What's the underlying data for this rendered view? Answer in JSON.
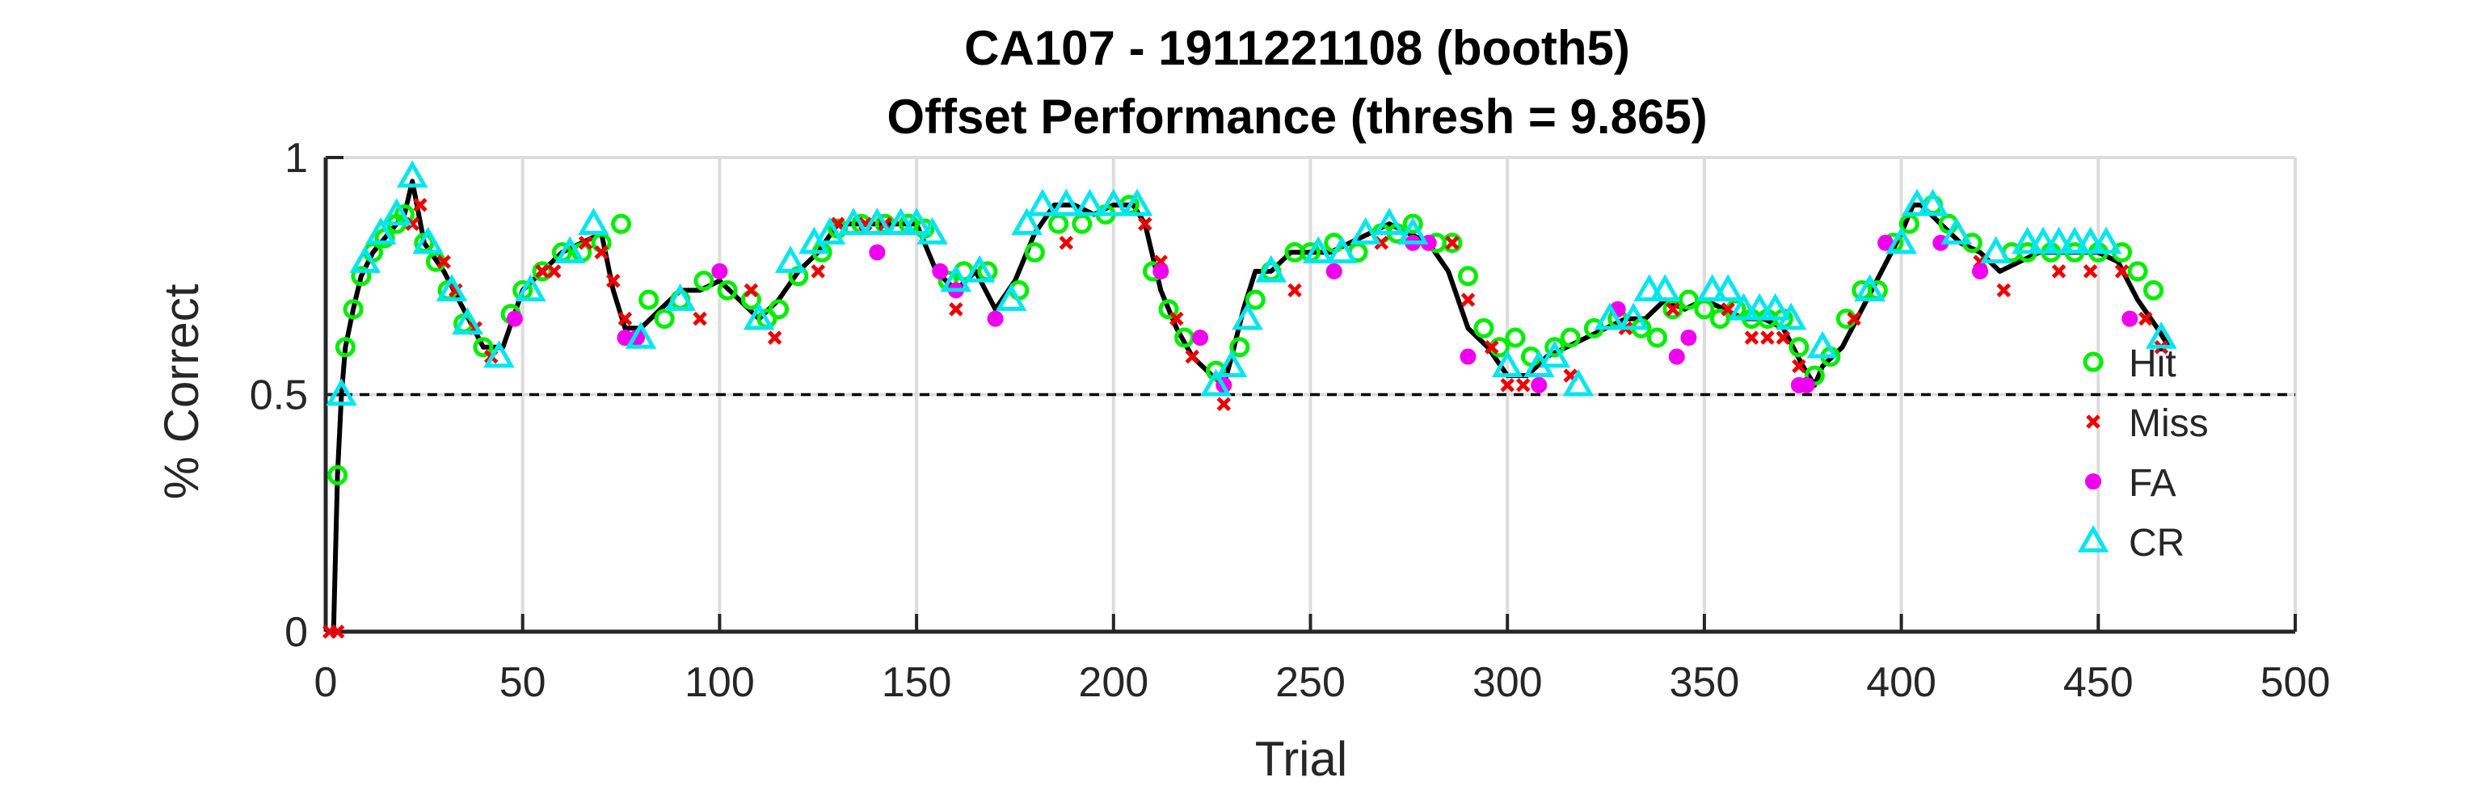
{
  "chart_data": {
    "type": "line",
    "title": "CA107 - 1911221108 (booth5)",
    "subtitle": "Offset Performance (thresh = 9.865)",
    "xlabel": "Trial",
    "ylabel": "% Correct",
    "xlim": [
      0,
      500
    ],
    "ylim": [
      0,
      1
    ],
    "xticks": [
      0,
      50,
      100,
      150,
      200,
      250,
      300,
      350,
      400,
      450,
      500
    ],
    "yticks": [
      0,
      0.5,
      1
    ],
    "ytick_labels": [
      "0",
      "0.5",
      "1"
    ],
    "grid": true,
    "threshold_line": 0.5,
    "legend": {
      "position": "right",
      "entries": [
        "Hit",
        "Miss",
        "FA",
        "CR"
      ]
    },
    "colors": {
      "line": "#000000",
      "hit": "#00ee00",
      "miss": "#ee0000",
      "fa": "#ee00ee",
      "cr": "#00e5ee"
    },
    "series": [
      {
        "name": "Hit",
        "marker": "open-circle",
        "x": [
          3,
          5,
          7,
          9,
          12,
          15,
          18,
          20,
          25,
          28,
          31,
          35,
          40,
          47,
          50,
          55,
          60,
          65,
          70,
          75,
          82,
          86,
          90,
          96,
          102,
          108,
          112,
          115,
          120,
          126,
          130,
          136,
          142,
          148,
          152,
          158,
          162,
          168,
          176,
          180,
          186,
          192,
          198,
          204,
          210,
          214,
          218,
          226,
          232,
          236,
          240,
          246,
          250,
          256,
          262,
          268,
          272,
          276,
          282,
          286,
          290,
          294,
          298,
          302,
          306,
          312,
          316,
          322,
          328,
          334,
          338,
          342,
          346,
          350,
          354,
          358,
          362,
          366,
          370,
          374,
          378,
          382,
          386,
          390,
          394,
          398,
          402,
          408,
          412,
          418,
          428,
          432,
          438,
          444,
          450,
          456,
          460,
          464
        ],
        "y": [
          0.33,
          0.6,
          0.68,
          0.75,
          0.8,
          0.83,
          0.86,
          0.88,
          0.82,
          0.78,
          0.72,
          0.65,
          0.6,
          0.67,
          0.72,
          0.76,
          0.8,
          0.8,
          0.82,
          0.86,
          0.7,
          0.66,
          0.7,
          0.74,
          0.72,
          0.7,
          0.66,
          0.68,
          0.75,
          0.8,
          0.85,
          0.86,
          0.86,
          0.86,
          0.85,
          0.74,
          0.76,
          0.76,
          0.72,
          0.8,
          0.86,
          0.86,
          0.88,
          0.9,
          0.76,
          0.68,
          0.62,
          0.55,
          0.6,
          0.7,
          0.76,
          0.8,
          0.8,
          0.82,
          0.8,
          0.84,
          0.84,
          0.86,
          0.82,
          0.82,
          0.75,
          0.64,
          0.6,
          0.62,
          0.58,
          0.6,
          0.62,
          0.64,
          0.66,
          0.64,
          0.62,
          0.68,
          0.7,
          0.68,
          0.66,
          0.68,
          0.66,
          0.66,
          0.66,
          0.6,
          0.54,
          0.58,
          0.66,
          0.72,
          0.72,
          0.82,
          0.86,
          0.9,
          0.86,
          0.82,
          0.8,
          0.8,
          0.8,
          0.8,
          0.8,
          0.8,
          0.76,
          0.72
        ]
      },
      {
        "name": "Miss",
        "marker": "x",
        "x": [
          1,
          3,
          22,
          24,
          30,
          33,
          38,
          42,
          55,
          58,
          66,
          70,
          73,
          76,
          95,
          108,
          114,
          125,
          130,
          137,
          142,
          160,
          188,
          208,
          212,
          216,
          220,
          228,
          246,
          268,
          286,
          290,
          296,
          300,
          304,
          316,
          330,
          342,
          346,
          356,
          362,
          366,
          370,
          374,
          388,
          420,
          426,
          440,
          448,
          456,
          462,
          466
        ],
        "y": [
          0,
          0,
          0.86,
          0.9,
          0.78,
          0.72,
          0.64,
          0.58,
          0.76,
          0.76,
          0.82,
          0.8,
          0.74,
          0.66,
          0.66,
          0.72,
          0.62,
          0.76,
          0.86,
          0.86,
          0.86,
          0.68,
          0.82,
          0.86,
          0.78,
          0.66,
          0.58,
          0.48,
          0.72,
          0.82,
          0.82,
          0.7,
          0.6,
          0.52,
          0.52,
          0.54,
          0.64,
          0.68,
          0.62,
          0.68,
          0.62,
          0.62,
          0.62,
          0.56,
          0.66,
          0.78,
          0.72,
          0.76,
          0.76,
          0.76,
          0.66,
          0.6
        ]
      },
      {
        "name": "FA",
        "marker": "filled-circle",
        "x": [
          48,
          76,
          79,
          100,
          140,
          156,
          160,
          170,
          212,
          222,
          228,
          256,
          276,
          280,
          290,
          308,
          328,
          343,
          346,
          374,
          376,
          396,
          410,
          420,
          458
        ],
        "y": [
          0.66,
          0.62,
          0.62,
          0.76,
          0.8,
          0.76,
          0.72,
          0.66,
          0.76,
          0.62,
          0.52,
          0.76,
          0.82,
          0.82,
          0.58,
          0.52,
          0.68,
          0.58,
          0.62,
          0.52,
          0.52,
          0.82,
          0.82,
          0.76,
          0.66
        ]
      },
      {
        "name": "CR",
        "marker": "triangle",
        "x": [
          4,
          10,
          14,
          18,
          22,
          26,
          32,
          36,
          44,
          52,
          62,
          68,
          80,
          90,
          110,
          118,
          124,
          128,
          134,
          140,
          146,
          150,
          154,
          160,
          166,
          174,
          178,
          182,
          188,
          194,
          200,
          206,
          226,
          230,
          234,
          240,
          252,
          258,
          264,
          270,
          276,
          300,
          308,
          312,
          318,
          326,
          332,
          336,
          340,
          352,
          356,
          360,
          364,
          368,
          372,
          380,
          392,
          400,
          404,
          408,
          414,
          424,
          432,
          436,
          440,
          444,
          448,
          452,
          466
        ],
        "y": [
          0.5,
          0.78,
          0.84,
          0.88,
          0.96,
          0.82,
          0.72,
          0.65,
          0.58,
          0.72,
          0.8,
          0.86,
          0.62,
          0.7,
          0.66,
          0.78,
          0.82,
          0.84,
          0.86,
          0.86,
          0.86,
          0.86,
          0.84,
          0.74,
          0.76,
          0.7,
          0.86,
          0.9,
          0.9,
          0.9,
          0.9,
          0.9,
          0.52,
          0.56,
          0.66,
          0.76,
          0.8,
          0.8,
          0.84,
          0.86,
          0.84,
          0.56,
          0.56,
          0.58,
          0.52,
          0.66,
          0.66,
          0.72,
          0.72,
          0.72,
          0.72,
          0.68,
          0.68,
          0.68,
          0.66,
          0.6,
          0.72,
          0.82,
          0.9,
          0.9,
          0.84,
          0.8,
          0.82,
          0.82,
          0.82,
          0.82,
          0.82,
          0.82,
          0.62
        ]
      }
    ],
    "performance_line": {
      "x": [
        0,
        2,
        3,
        4,
        5,
        7,
        9,
        12,
        15,
        18,
        20,
        22,
        25,
        30,
        35,
        40,
        45,
        50,
        55,
        60,
        65,
        70,
        73,
        76,
        80,
        85,
        90,
        95,
        100,
        105,
        110,
        115,
        120,
        125,
        130,
        135,
        140,
        145,
        150,
        155,
        160,
        165,
        170,
        175,
        180,
        185,
        190,
        195,
        200,
        205,
        208,
        212,
        216,
        220,
        225,
        228,
        230,
        233,
        236,
        240,
        245,
        250,
        255,
        260,
        265,
        270,
        275,
        280,
        285,
        290,
        295,
        300,
        305,
        310,
        315,
        320,
        325,
        330,
        335,
        340,
        345,
        350,
        355,
        360,
        365,
        370,
        375,
        378,
        380,
        385,
        390,
        395,
        400,
        403,
        405,
        410,
        415,
        420,
        425,
        430,
        435,
        440,
        445,
        450,
        455,
        460,
        465,
        468
      ],
      "y": [
        0,
        0,
        0.33,
        0.5,
        0.6,
        0.68,
        0.75,
        0.8,
        0.83,
        0.86,
        0.88,
        0.95,
        0.82,
        0.76,
        0.68,
        0.6,
        0.6,
        0.72,
        0.76,
        0.8,
        0.82,
        0.84,
        0.72,
        0.64,
        0.64,
        0.68,
        0.72,
        0.72,
        0.74,
        0.7,
        0.66,
        0.7,
        0.76,
        0.8,
        0.86,
        0.86,
        0.86,
        0.86,
        0.86,
        0.76,
        0.72,
        0.76,
        0.68,
        0.74,
        0.84,
        0.9,
        0.9,
        0.88,
        0.9,
        0.9,
        0.86,
        0.72,
        0.64,
        0.58,
        0.54,
        0.52,
        0.58,
        0.68,
        0.76,
        0.76,
        0.8,
        0.8,
        0.8,
        0.82,
        0.84,
        0.86,
        0.84,
        0.82,
        0.76,
        0.64,
        0.6,
        0.54,
        0.54,
        0.58,
        0.6,
        0.62,
        0.64,
        0.66,
        0.66,
        0.7,
        0.68,
        0.7,
        0.68,
        0.66,
        0.66,
        0.64,
        0.56,
        0.52,
        0.56,
        0.6,
        0.68,
        0.76,
        0.84,
        0.9,
        0.9,
        0.86,
        0.82,
        0.8,
        0.76,
        0.78,
        0.8,
        0.8,
        0.8,
        0.8,
        0.78,
        0.7,
        0.64,
        0.6
      ]
    }
  }
}
